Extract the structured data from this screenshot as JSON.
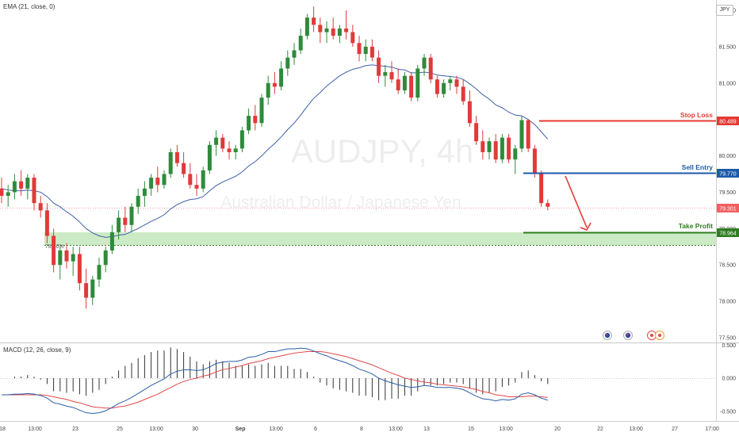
{
  "indicators": {
    "ema_label": "EMA (21, close, 0)",
    "macd_label": "MACD (12, 26, close, 9)"
  },
  "symbol_badge": "JPY",
  "watermark": {
    "symbol": "AUDJPY, 4h",
    "name": "Australian Dollar / Japanese Yen"
  },
  "fib": {
    "label": "78.60%"
  },
  "trade_levels": [
    {
      "label": "Stop Loss",
      "value": "80.489",
      "color": "#e53935"
    },
    {
      "label": "Sell Entry",
      "value": "79.770",
      "color": "#1e5aa8"
    },
    {
      "label": "Take Profit",
      "value": "78.964",
      "color": "#2e7d1f"
    }
  ],
  "last_price": {
    "value": "79.301",
    "color": "#f06060"
  },
  "price_axis": [
    "77.500",
    "78.000",
    "78.500",
    "79.000",
    "79.500",
    "80.000",
    "80.500",
    "81.000",
    "81.500",
    "82.000"
  ],
  "macd_axis": [
    "0.500",
    "0.000",
    "-0.500"
  ],
  "time_axis": [
    "18",
    "13:00",
    "23",
    "25",
    "13:00",
    "30",
    "Sep",
    "13:00",
    "6",
    "8",
    "13:00",
    "13",
    "15",
    "13:00",
    "20",
    "22",
    "13:00",
    "27",
    "17:00"
  ],
  "colors": {
    "up": "#2e8b3a",
    "down": "#e03a3a",
    "ema": "#3f5fa8",
    "macd": "#2b5ea8",
    "signal": "#e04848",
    "zone": "#8fd07f",
    "fib_line": "#2e7d1f"
  },
  "chart_data": {
    "type": "candlestick",
    "price_range": [
      77.5,
      82.0
    ],
    "macd_range": [
      -0.6,
      0.55
    ],
    "ohlc": [
      [
        79.55,
        79.7,
        79.35,
        79.45
      ],
      [
        79.45,
        79.6,
        79.3,
        79.5
      ],
      [
        79.5,
        79.75,
        79.4,
        79.65
      ],
      [
        79.65,
        79.8,
        79.45,
        79.55
      ],
      [
        79.55,
        79.75,
        79.4,
        79.7
      ],
      [
        79.7,
        79.75,
        79.25,
        79.35
      ],
      [
        79.35,
        79.45,
        79.15,
        79.25
      ],
      [
        79.25,
        79.35,
        78.8,
        78.9
      ],
      [
        78.9,
        79.0,
        78.4,
        78.5
      ],
      [
        78.5,
        78.75,
        78.3,
        78.7
      ],
      [
        78.7,
        78.8,
        78.45,
        78.55
      ],
      [
        78.55,
        78.75,
        78.35,
        78.65
      ],
      [
        78.65,
        78.75,
        78.15,
        78.25
      ],
      [
        78.25,
        78.45,
        77.9,
        78.05
      ],
      [
        78.05,
        78.35,
        77.95,
        78.3
      ],
      [
        78.3,
        78.6,
        78.2,
        78.5
      ],
      [
        78.5,
        78.75,
        78.4,
        78.7
      ],
      [
        78.7,
        79.05,
        78.65,
        78.95
      ],
      [
        78.95,
        79.25,
        78.85,
        79.15
      ],
      [
        79.15,
        79.3,
        78.95,
        79.05
      ],
      [
        79.05,
        79.35,
        78.95,
        79.3
      ],
      [
        79.3,
        79.55,
        79.2,
        79.45
      ],
      [
        79.45,
        79.65,
        79.3,
        79.55
      ],
      [
        79.55,
        79.75,
        79.45,
        79.7
      ],
      [
        79.7,
        79.85,
        79.5,
        79.6
      ],
      [
        79.6,
        79.8,
        79.55,
        79.75
      ],
      [
        79.75,
        80.1,
        79.7,
        80.05
      ],
      [
        80.05,
        80.15,
        79.85,
        79.9
      ],
      [
        79.9,
        80.05,
        79.7,
        79.75
      ],
      [
        79.75,
        79.9,
        79.55,
        79.6
      ],
      [
        79.6,
        79.75,
        79.45,
        79.55
      ],
      [
        79.55,
        79.85,
        79.5,
        79.8
      ],
      [
        79.8,
        80.2,
        79.75,
        80.15
      ],
      [
        80.15,
        80.35,
        80.0,
        80.25
      ],
      [
        80.25,
        80.3,
        80.05,
        80.1
      ],
      [
        80.1,
        80.2,
        79.95,
        80.05
      ],
      [
        80.05,
        80.15,
        79.95,
        80.1
      ],
      [
        80.1,
        80.4,
        80.05,
        80.35
      ],
      [
        80.35,
        80.65,
        80.3,
        80.55
      ],
      [
        80.55,
        80.7,
        80.35,
        80.45
      ],
      [
        80.45,
        80.85,
        80.4,
        80.8
      ],
      [
        80.8,
        81.1,
        80.7,
        81.0
      ],
      [
        81.0,
        81.15,
        80.85,
        80.95
      ],
      [
        80.95,
        81.3,
        80.9,
        81.2
      ],
      [
        81.2,
        81.45,
        81.1,
        81.35
      ],
      [
        81.35,
        81.55,
        81.25,
        81.45
      ],
      [
        81.45,
        81.75,
        81.4,
        81.65
      ],
      [
        81.65,
        81.95,
        81.6,
        81.9
      ],
      [
        81.9,
        82.05,
        81.7,
        81.8
      ],
      [
        81.8,
        81.9,
        81.55,
        81.7
      ],
      [
        81.7,
        81.85,
        81.55,
        81.75
      ],
      [
        81.75,
        81.9,
        81.6,
        81.65
      ],
      [
        81.65,
        81.8,
        81.55,
        81.75
      ],
      [
        81.75,
        82.0,
        81.6,
        81.7
      ],
      [
        81.7,
        81.8,
        81.5,
        81.55
      ],
      [
        81.55,
        81.65,
        81.3,
        81.4
      ],
      [
        81.4,
        81.6,
        81.3,
        81.5
      ],
      [
        81.5,
        81.6,
        81.3,
        81.35
      ],
      [
        81.35,
        81.45,
        81.0,
        81.1
      ],
      [
        81.1,
        81.25,
        80.95,
        81.15
      ],
      [
        81.15,
        81.3,
        81.0,
        81.05
      ],
      [
        81.05,
        81.2,
        80.85,
        80.9
      ],
      [
        80.9,
        81.15,
        80.85,
        81.1
      ],
      [
        81.1,
        81.15,
        80.75,
        80.8
      ],
      [
        80.8,
        81.25,
        80.75,
        81.2
      ],
      [
        81.2,
        81.4,
        81.1,
        81.35
      ],
      [
        81.35,
        81.4,
        81.0,
        81.05
      ],
      [
        81.05,
        81.1,
        80.8,
        80.85
      ],
      [
        80.85,
        81.05,
        80.8,
        81.0
      ],
      [
        81.0,
        81.1,
        80.9,
        81.05
      ],
      [
        81.05,
        81.1,
        80.85,
        80.95
      ],
      [
        80.95,
        81.05,
        80.7,
        80.75
      ],
      [
        80.75,
        80.9,
        80.4,
        80.45
      ],
      [
        80.45,
        80.55,
        80.15,
        80.2
      ],
      [
        80.2,
        80.35,
        79.95,
        80.05
      ],
      [
        80.05,
        80.25,
        79.95,
        80.2
      ],
      [
        80.2,
        80.3,
        79.9,
        79.95
      ],
      [
        79.95,
        80.3,
        79.9,
        80.25
      ],
      [
        80.25,
        80.3,
        79.9,
        79.95
      ],
      [
        79.95,
        80.15,
        79.75,
        80.1
      ],
      [
        80.1,
        80.55,
        80.05,
        80.49
      ],
      [
        80.49,
        80.5,
        80.05,
        80.1
      ],
      [
        80.1,
        80.15,
        79.7,
        79.75
      ],
      [
        79.75,
        79.8,
        79.3,
        79.35
      ],
      [
        79.35,
        79.4,
        79.25,
        79.3
      ]
    ],
    "ema": [
      79.55,
      79.53,
      79.52,
      79.52,
      79.53,
      79.52,
      79.5,
      79.44,
      79.35,
      79.3,
      79.23,
      79.17,
      79.09,
      79.0,
      78.94,
      78.9,
      78.88,
      78.89,
      78.91,
      78.92,
      78.96,
      79.0,
      79.05,
      79.1,
      79.14,
      79.19,
      79.27,
      79.33,
      79.37,
      79.4,
      79.41,
      79.44,
      79.52,
      79.59,
      79.64,
      79.68,
      79.72,
      79.78,
      79.86,
      79.92,
      80.0,
      80.09,
      80.17,
      80.26,
      80.36,
      80.45,
      80.56,
      80.68,
      80.79,
      80.87,
      80.96,
      81.03,
      81.1,
      81.15,
      81.19,
      81.21,
      81.24,
      81.25,
      81.24,
      81.23,
      81.22,
      81.19,
      81.18,
      81.14,
      81.14,
      81.15,
      81.14,
      81.11,
      81.1,
      81.09,
      81.08,
      81.05,
      80.99,
      80.92,
      80.84,
      80.78,
      80.7,
      80.66,
      80.6,
      80.56,
      80.55,
      80.5,
      80.43,
      80.33,
      80.23
    ],
    "macd": [
      -0.25,
      -0.25,
      -0.24,
      -0.24,
      -0.23,
      -0.24,
      -0.26,
      -0.3,
      -0.37,
      -0.39,
      -0.42,
      -0.44,
      -0.48,
      -0.52,
      -0.53,
      -0.52,
      -0.49,
      -0.44,
      -0.38,
      -0.34,
      -0.29,
      -0.23,
      -0.17,
      -0.11,
      -0.06,
      -0.01,
      0.06,
      0.1,
      0.12,
      0.12,
      0.11,
      0.12,
      0.16,
      0.21,
      0.23,
      0.24,
      0.24,
      0.26,
      0.3,
      0.31,
      0.34,
      0.38,
      0.38,
      0.4,
      0.42,
      0.42,
      0.43,
      0.42,
      0.39,
      0.35,
      0.32,
      0.28,
      0.25,
      0.22,
      0.18,
      0.13,
      0.1,
      0.06,
      0.0,
      -0.04,
      -0.07,
      -0.1,
      -0.12,
      -0.14,
      -0.13,
      -0.11,
      -0.12,
      -0.14,
      -0.14,
      -0.14,
      -0.15,
      -0.17,
      -0.22,
      -0.27,
      -0.31,
      -0.32,
      -0.34,
      -0.32,
      -0.33,
      -0.31,
      -0.24,
      -0.22,
      -0.25,
      -0.3,
      -0.33
    ],
    "signal": [
      -0.25,
      -0.25,
      -0.25,
      -0.25,
      -0.25,
      -0.25,
      -0.25,
      -0.26,
      -0.28,
      -0.3,
      -0.32,
      -0.35,
      -0.37,
      -0.4,
      -0.43,
      -0.44,
      -0.45,
      -0.45,
      -0.43,
      -0.42,
      -0.39,
      -0.36,
      -0.32,
      -0.28,
      -0.24,
      -0.19,
      -0.14,
      -0.09,
      -0.05,
      -0.02,
      0.0,
      0.03,
      0.05,
      0.09,
      0.12,
      0.14,
      0.16,
      0.18,
      0.21,
      0.23,
      0.25,
      0.28,
      0.3,
      0.32,
      0.34,
      0.36,
      0.37,
      0.38,
      0.38,
      0.38,
      0.37,
      0.35,
      0.33,
      0.31,
      0.28,
      0.25,
      0.22,
      0.19,
      0.15,
      0.11,
      0.07,
      0.04,
      0.0,
      -0.02,
      -0.04,
      -0.06,
      -0.07,
      -0.09,
      -0.1,
      -0.11,
      -0.12,
      -0.13,
      -0.15,
      -0.17,
      -0.2,
      -0.22,
      -0.25,
      -0.26,
      -0.28,
      -0.28,
      -0.28,
      -0.27,
      -0.27,
      -0.28,
      -0.29
    ]
  }
}
